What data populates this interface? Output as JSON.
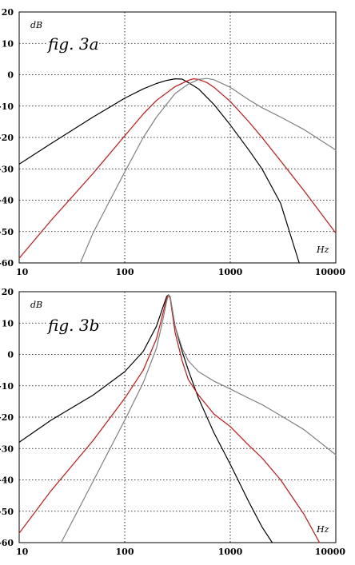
{
  "chart_data": [
    {
      "type": "line",
      "title": "fig. 3a",
      "xlabel": "Hz",
      "ylabel": "dB",
      "x_scale": "log",
      "xlim": [
        10,
        10000
      ],
      "ylim": [
        -60,
        20
      ],
      "x_ticks": [
        10,
        100,
        1000,
        10000
      ],
      "y_ticks": [
        20,
        10,
        0,
        -10,
        -20,
        -30,
        -40,
        -50,
        -60
      ],
      "grid": true,
      "colors": [
        "#000000",
        "#d01010",
        "#808080"
      ],
      "series": [
        {
          "x": [
            10,
            20,
            50,
            100,
            150,
            200,
            250,
            300,
            350,
            400,
            500,
            700,
            1000,
            1500,
            2000,
            3000,
            4500
          ],
          "y": [
            -28.5,
            -22,
            -13.5,
            -7.5,
            -4.5,
            -2.8,
            -1.8,
            -1.3,
            -1.4,
            -2.5,
            -4.5,
            -9.5,
            -16,
            -24,
            -30,
            -41,
            -60
          ]
        },
        {
          "x": [
            10,
            20,
            50,
            100,
            150,
            200,
            300,
            400,
            450,
            500,
            600,
            700,
            1000,
            1500,
            2000,
            3000,
            5000,
            10000
          ],
          "y": [
            -58.5,
            -46.5,
            -31.5,
            -19.5,
            -12.5,
            -8.2,
            -3.8,
            -1.8,
            -1.3,
            -1.5,
            -2.5,
            -4,
            -8.5,
            -15,
            -20,
            -27.5,
            -37,
            -50.5
          ]
        },
        {
          "x": [
            38,
            50,
            70,
            100,
            150,
            200,
            300,
            400,
            500,
            600,
            700,
            1000,
            1500,
            2000,
            3000,
            5000,
            10000
          ],
          "y": [
            -60,
            -50.5,
            -41,
            -31,
            -20,
            -13.5,
            -6,
            -3,
            -1.5,
            -1.2,
            -1.6,
            -4,
            -8,
            -10.5,
            -13.5,
            -17.5,
            -24
          ]
        }
      ]
    },
    {
      "type": "line",
      "title": "fig. 3b",
      "xlabel": "Hz",
      "ylabel": "dB",
      "x_scale": "log",
      "xlim": [
        10,
        10000
      ],
      "ylim": [
        -60,
        20
      ],
      "x_ticks": [
        10,
        100,
        1000,
        10000
      ],
      "y_ticks": [
        20,
        10,
        0,
        -10,
        -20,
        -30,
        -40,
        -50,
        -60
      ],
      "grid": true,
      "colors": [
        "#000000",
        "#d01010",
        "#808080"
      ],
      "series": [
        {
          "x": [
            10,
            20,
            50,
            100,
            150,
            200,
            230,
            250,
            260,
            270,
            280,
            300,
            350,
            400,
            500,
            700,
            1000,
            1500,
            2000,
            2500
          ],
          "y": [
            -28,
            -21,
            -13,
            -5.5,
            1,
            9,
            15,
            18.5,
            19,
            18,
            15,
            9,
            1,
            -5,
            -14,
            -25,
            -35,
            -47,
            -55,
            -60
          ]
        },
        {
          "x": [
            10,
            20,
            50,
            100,
            150,
            200,
            230,
            250,
            260,
            270,
            280,
            300,
            350,
            400,
            500,
            700,
            1000,
            1500,
            2000,
            3000,
            5000,
            7000
          ],
          "y": [
            -57,
            -43.5,
            -27.5,
            -14,
            -5,
            5,
            13,
            18,
            19,
            18,
            14,
            7,
            -2,
            -8,
            -13,
            -19,
            -23,
            -29,
            -33,
            -40,
            -51,
            -60
          ]
        },
        {
          "x": [
            25,
            50,
            100,
            150,
            200,
            230,
            250,
            260,
            270,
            280,
            300,
            350,
            400,
            500,
            700,
            1000,
            1500,
            2000,
            3000,
            5000,
            10000
          ],
          "y": [
            -60,
            -40.5,
            -21,
            -9,
            2,
            11,
            17,
            19,
            18.5,
            15,
            9,
            2,
            -2,
            -5.5,
            -8.5,
            -11,
            -14,
            -16,
            -19.5,
            -24,
            -32
          ]
        }
      ]
    }
  ]
}
